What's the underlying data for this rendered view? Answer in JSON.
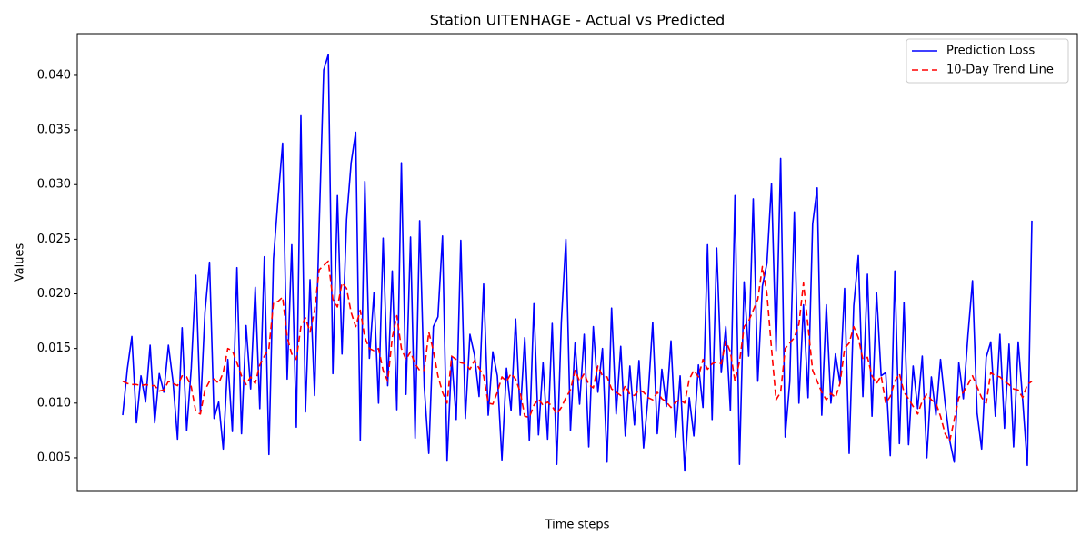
{
  "chart_data": {
    "type": "line",
    "title": "Station UITENHAGE - Actual vs Predicted",
    "x_label": "Time steps",
    "y_label": "Values",
    "legend": "upper right",
    "x": [
      0,
      1,
      2,
      3,
      4,
      5,
      6,
      7,
      8,
      9,
      10,
      11,
      12,
      13,
      14,
      15,
      16,
      17,
      18,
      19,
      20,
      21,
      22,
      23,
      24,
      25,
      26,
      27,
      28,
      29,
      30,
      31,
      32,
      33,
      34,
      35,
      36,
      37,
      38,
      39,
      40,
      41,
      42,
      43,
      44,
      45,
      46,
      47,
      48,
      49,
      50,
      51,
      52,
      53,
      54,
      55,
      56,
      57,
      58,
      59,
      60,
      61,
      62,
      63,
      64,
      65,
      66,
      67,
      68,
      69,
      70,
      71,
      72,
      73,
      74,
      75,
      76,
      77,
      78,
      79,
      80,
      81,
      82,
      83,
      84,
      85,
      86,
      87,
      88,
      89,
      90,
      91,
      92,
      93,
      94,
      95,
      96,
      97,
      98,
      99,
      100,
      101,
      102,
      103,
      104,
      105,
      106,
      107,
      108,
      109,
      110,
      111,
      112,
      113,
      114,
      115,
      116,
      117,
      118,
      119,
      120,
      121,
      122,
      123,
      124,
      125,
      126,
      127,
      128,
      129,
      130,
      131,
      132,
      133,
      134,
      135,
      136,
      137,
      138,
      139,
      140,
      141,
      142,
      143,
      144,
      145,
      146,
      147,
      148,
      149,
      150,
      151,
      152,
      153,
      154,
      155,
      156,
      157,
      158,
      159,
      160,
      161,
      162,
      163,
      164,
      165,
      166,
      167,
      168,
      169,
      170,
      171,
      172,
      173,
      174,
      175,
      176,
      177,
      178,
      179,
      180,
      181,
      182,
      183,
      184,
      185,
      186,
      187,
      188,
      189,
      190,
      191,
      192,
      193,
      194,
      195,
      196,
      197,
      198,
      199
    ],
    "xlim": [
      -9.95,
      208.95
    ],
    "ylim": [
      0.00192,
      0.04382
    ],
    "yticks": [
      0.005,
      {
        "value": 0.01,
        "label": "0.010"
      },
      0.015,
      {
        "value": 0.02,
        "label": "0.020"
      },
      0.025,
      {
        "value": 0.03,
        "label": "0.030"
      },
      0.035,
      {
        "value": 0.04,
        "label": "0.040"
      }
    ],
    "series": [
      {
        "name": "Prediction Loss",
        "color": "#0000ff",
        "linestyle": "solid",
        "values": [
          0.0089,
          0.0131,
          0.0161,
          0.0082,
          0.0125,
          0.0101,
          0.0153,
          0.0082,
          0.0127,
          0.011,
          0.0153,
          0.012,
          0.0067,
          0.0169,
          0.0075,
          0.0132,
          0.0217,
          0.0092,
          0.0183,
          0.0229,
          0.0086,
          0.0101,
          0.0058,
          0.014,
          0.0074,
          0.0224,
          0.0072,
          0.0171,
          0.0113,
          0.0206,
          0.0095,
          0.0234,
          0.0053,
          0.0232,
          0.0287,
          0.0338,
          0.0122,
          0.0245,
          0.0078,
          0.0363,
          0.0092,
          0.0213,
          0.0107,
          0.0262,
          0.0405,
          0.0419,
          0.0127,
          0.029,
          0.0145,
          0.0268,
          0.032,
          0.0348,
          0.0066,
          0.0303,
          0.0141,
          0.0201,
          0.01,
          0.0251,
          0.0116,
          0.0221,
          0.0094,
          0.032,
          0.0108,
          0.0252,
          0.0068,
          0.0267,
          0.0115,
          0.0054,
          0.017,
          0.0179,
          0.0253,
          0.0047,
          0.0142,
          0.0085,
          0.0249,
          0.0086,
          0.0163,
          0.0144,
          0.0106,
          0.0209,
          0.0089,
          0.0147,
          0.0125,
          0.0048,
          0.0132,
          0.0093,
          0.0177,
          0.0089,
          0.016,
          0.0066,
          0.0191,
          0.0071,
          0.0137,
          0.0067,
          0.0173,
          0.0044,
          0.0174,
          0.025,
          0.0075,
          0.0155,
          0.0099,
          0.0163,
          0.006,
          0.017,
          0.011,
          0.015,
          0.0046,
          0.0187,
          0.009,
          0.0152,
          0.007,
          0.0134,
          0.008,
          0.0139,
          0.0059,
          0.0107,
          0.0174,
          0.0072,
          0.0131,
          0.0097,
          0.0157,
          0.0069,
          0.0125,
          0.0038,
          0.0105,
          0.007,
          0.0135,
          0.0096,
          0.0245,
          0.0085,
          0.0242,
          0.0128,
          0.017,
          0.0093,
          0.029,
          0.0044,
          0.0211,
          0.0143,
          0.0287,
          0.012,
          0.0207,
          0.0228,
          0.0301,
          0.0148,
          0.0324,
          0.0069,
          0.012,
          0.0275,
          0.01,
          0.019,
          0.0105,
          0.0264,
          0.0297,
          0.0089,
          0.019,
          0.01,
          0.0145,
          0.0118,
          0.0205,
          0.0054,
          0.0189,
          0.0235,
          0.0106,
          0.0218,
          0.0088,
          0.0201,
          0.0125,
          0.0128,
          0.0052,
          0.0221,
          0.0063,
          0.0192,
          0.0062,
          0.0134,
          0.0095,
          0.0143,
          0.005,
          0.0124,
          0.0089,
          0.014,
          0.01,
          0.0066,
          0.0046,
          0.0137,
          0.0104,
          0.0162,
          0.0212,
          0.0091,
          0.0058,
          0.0142,
          0.0156,
          0.0088,
          0.0163,
          0.0077,
          0.0154,
          0.006,
          0.0156,
          0.0102,
          0.0043,
          0.0267
        ]
      },
      {
        "name": "10-Day Trend Line",
        "color": "#ff0000",
        "linestyle": "dashed",
        "values": [
          0.012,
          0.0118,
          0.0117,
          0.0117,
          0.0116,
          0.0117,
          0.0116,
          0.0116,
          0.0111,
          0.0112,
          0.012,
          0.0118,
          0.0116,
          0.0125,
          0.0124,
          0.0115,
          0.0092,
          0.009,
          0.0112,
          0.012,
          0.0122,
          0.0118,
          0.0128,
          0.015,
          0.0148,
          0.0137,
          0.0125,
          0.0117,
          0.0124,
          0.0118,
          0.0135,
          0.0143,
          0.015,
          0.0192,
          0.0193,
          0.0197,
          0.016,
          0.0145,
          0.014,
          0.017,
          0.0178,
          0.0165,
          0.0185,
          0.0222,
          0.0226,
          0.023,
          0.0195,
          0.0188,
          0.021,
          0.0205,
          0.0183,
          0.017,
          0.0185,
          0.016,
          0.015,
          0.0148,
          0.015,
          0.013,
          0.012,
          0.016,
          0.018,
          0.015,
          0.014,
          0.0147,
          0.0136,
          0.013,
          0.013,
          0.0165,
          0.0148,
          0.0125,
          0.011,
          0.01,
          0.0143,
          0.014,
          0.0137,
          0.0136,
          0.0131,
          0.0139,
          0.0132,
          0.0125,
          0.01,
          0.0099,
          0.011,
          0.0124,
          0.012,
          0.0127,
          0.0122,
          0.011,
          0.0088,
          0.0087,
          0.0098,
          0.0104,
          0.0098,
          0.0101,
          0.0097,
          0.009,
          0.0096,
          0.0105,
          0.0112,
          0.013,
          0.012,
          0.0127,
          0.0117,
          0.0114,
          0.0134,
          0.0125,
          0.0124,
          0.0113,
          0.011,
          0.0107,
          0.0116,
          0.0108,
          0.0107,
          0.0112,
          0.011,
          0.0105,
          0.0103,
          0.011,
          0.0104,
          0.0101,
          0.0096,
          0.0101,
          0.0103,
          0.01,
          0.0122,
          0.013,
          0.0124,
          0.014,
          0.0131,
          0.0136,
          0.0138,
          0.0136,
          0.0157,
          0.0147,
          0.012,
          0.0138,
          0.017,
          0.0175,
          0.0185,
          0.0195,
          0.0225,
          0.02,
          0.015,
          0.0103,
          0.011,
          0.015,
          0.0155,
          0.016,
          0.0172,
          0.021,
          0.017,
          0.013,
          0.012,
          0.011,
          0.0103,
          0.0109,
          0.0105,
          0.0118,
          0.015,
          0.0155,
          0.017,
          0.016,
          0.014,
          0.0142,
          0.0125,
          0.0118,
          0.0125,
          0.01,
          0.0106,
          0.012,
          0.0127,
          0.011,
          0.0104,
          0.0097,
          0.009,
          0.0102,
          0.0108,
          0.0103,
          0.01,
          0.0088,
          0.0072,
          0.0065,
          0.0085,
          0.0105,
          0.011,
          0.0117,
          0.0125,
          0.0115,
          0.0105,
          0.01,
          0.0128,
          0.0125,
          0.0124,
          0.012,
          0.0117,
          0.0113,
          0.0112,
          0.0105,
          0.0117,
          0.012
        ]
      }
    ]
  }
}
